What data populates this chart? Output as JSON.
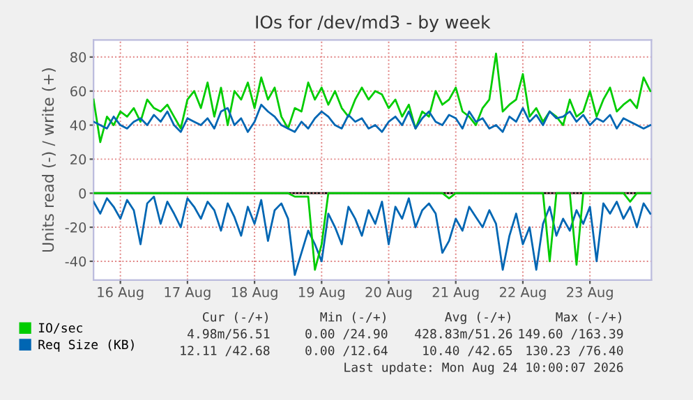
{
  "chart_data": {
    "type": "line",
    "title": "IOs for /dev/md3 - by week",
    "ylabel": "Units read (-) / write (+)",
    "x": [
      "2026-08-16T02:24",
      "2026-08-16T04:48",
      "2026-08-16T07:12",
      "2026-08-16T09:36",
      "2026-08-16T12:00",
      "2026-08-16T14:24",
      "2026-08-16T16:48",
      "2026-08-16T19:12",
      "2026-08-16T21:36",
      "2026-08-17T00:00",
      "2026-08-17T02:24",
      "2026-08-17T04:48",
      "2026-08-17T07:12",
      "2026-08-17T09:36",
      "2026-08-17T12:00",
      "2026-08-17T14:24",
      "2026-08-17T16:48",
      "2026-08-17T19:12",
      "2026-08-17T21:36",
      "2026-08-18T00:00",
      "2026-08-18T02:24",
      "2026-08-18T04:48",
      "2026-08-18T07:12",
      "2026-08-18T09:36",
      "2026-08-18T12:00",
      "2026-08-18T14:24",
      "2026-08-18T16:48",
      "2026-08-18T19:12",
      "2026-08-18T21:36",
      "2026-08-19T00:00",
      "2026-08-19T02:24",
      "2026-08-19T04:48",
      "2026-08-19T07:12",
      "2026-08-19T09:36",
      "2026-08-19T12:00",
      "2026-08-19T14:24",
      "2026-08-19T16:48",
      "2026-08-19T19:12",
      "2026-08-19T21:36",
      "2026-08-20T00:00",
      "2026-08-20T02:24",
      "2026-08-20T04:48",
      "2026-08-20T07:12",
      "2026-08-20T09:36",
      "2026-08-20T12:00",
      "2026-08-20T14:24",
      "2026-08-20T16:48",
      "2026-08-20T19:12",
      "2026-08-20T21:36",
      "2026-08-21T00:00",
      "2026-08-21T02:24",
      "2026-08-21T04:48",
      "2026-08-21T07:12",
      "2026-08-21T09:36",
      "2026-08-21T12:00",
      "2026-08-21T14:24",
      "2026-08-21T16:48",
      "2026-08-21T19:12",
      "2026-08-21T21:36",
      "2026-08-22T00:00",
      "2026-08-22T02:24",
      "2026-08-22T04:48",
      "2026-08-22T07:12",
      "2026-08-22T09:36",
      "2026-08-22T12:00",
      "2026-08-22T14:24",
      "2026-08-22T16:48",
      "2026-08-22T19:12",
      "2026-08-22T21:36",
      "2026-08-23T00:00",
      "2026-08-23T02:24",
      "2026-08-23T04:48",
      "2026-08-23T07:12",
      "2026-08-23T09:36",
      "2026-08-23T12:00",
      "2026-08-23T14:24",
      "2026-08-23T16:48",
      "2026-08-23T19:12",
      "2026-08-23T21:36",
      "2026-08-24T00:00",
      "2026-08-24T02:24",
      "2026-08-24T04:48",
      "2026-08-24T07:12",
      "2026-08-24T09:36"
    ],
    "series": [
      {
        "name": "IO/sec",
        "color": "#00cc00",
        "values": [
          55,
          30,
          45,
          40,
          48,
          45,
          50,
          42,
          55,
          50,
          48,
          52,
          45,
          38,
          55,
          60,
          50,
          65,
          45,
          62,
          40,
          60,
          55,
          65,
          50,
          68,
          55,
          62,
          45,
          38,
          50,
          48,
          65,
          55,
          62,
          52,
          60,
          50,
          45,
          55,
          62,
          55,
          60,
          58,
          50,
          55,
          45,
          52,
          38,
          48,
          45,
          60,
          52,
          55,
          62,
          48,
          45,
          40,
          50,
          55,
          82,
          48,
          52,
          55,
          70,
          45,
          50,
          42,
          48,
          45,
          40,
          55,
          45,
          48,
          60,
          45,
          55,
          62,
          48,
          52,
          55,
          50,
          68,
          60
        ]
      },
      {
        "name": "Req Size (KB)",
        "color": "#0066b3",
        "values": [
          42,
          40,
          38,
          45,
          40,
          38,
          42,
          44,
          40,
          46,
          42,
          48,
          40,
          36,
          44,
          42,
          40,
          44,
          38,
          48,
          50,
          40,
          44,
          36,
          42,
          52,
          48,
          45,
          40,
          38,
          36,
          42,
          38,
          44,
          48,
          45,
          40,
          38,
          46,
          42,
          44,
          38,
          40,
          36,
          42,
          45,
          40,
          48,
          38,
          44,
          48,
          42,
          40,
          46,
          44,
          38,
          48,
          42,
          44,
          38,
          40,
          36,
          45,
          42,
          50,
          42,
          46,
          40,
          48,
          44,
          45,
          48,
          42,
          46,
          40,
          44,
          42,
          46,
          38,
          44,
          42,
          40,
          38,
          40
        ]
      },
      {
        "color": "#0066b3",
        "values": [
          -5,
          -12,
          -3,
          -8,
          -15,
          -4,
          -10,
          -30,
          -6,
          -2,
          -18,
          -5,
          -12,
          -20,
          -3,
          -8,
          -15,
          -5,
          -10,
          -22,
          -6,
          -14,
          -25,
          -8,
          -18,
          -4,
          -28,
          -10,
          -6,
          -15,
          -48,
          -35,
          -22,
          -30,
          -40,
          -12,
          -20,
          -30,
          -8,
          -15,
          -25,
          -10,
          -18,
          -5,
          -30,
          -8,
          -15,
          -3,
          -20,
          -10,
          -6,
          -12,
          -35,
          -28,
          -15,
          -22,
          -8,
          -14,
          -20,
          -10,
          -18,
          -45,
          -25,
          -12,
          -30,
          -20,
          -45,
          -18,
          -8,
          -25,
          -15,
          -22,
          -10,
          -18,
          -8,
          -40,
          -6,
          -12,
          -5,
          -15,
          -8,
          -20,
          -6,
          -12
        ]
      },
      {
        "color": "#00cc00",
        "values": [
          0,
          0,
          0,
          0,
          0,
          0,
          0,
          0,
          0,
          0,
          0,
          0,
          0,
          0,
          0,
          0,
          0,
          0,
          0,
          0,
          0,
          0,
          0,
          0,
          0,
          0,
          0,
          0,
          0,
          0,
          -2,
          -2,
          -2,
          -45,
          -30,
          0,
          0,
          0,
          0,
          0,
          0,
          0,
          0,
          0,
          0,
          0,
          0,
          0,
          0,
          0,
          0,
          0,
          0,
          -3,
          0,
          0,
          0,
          0,
          0,
          0,
          0,
          0,
          0,
          0,
          0,
          0,
          0,
          0,
          -40,
          0,
          0,
          0,
          -42,
          0,
          0,
          0,
          0,
          0,
          0,
          0,
          -5,
          0,
          0,
          0
        ]
      }
    ],
    "xlim": [
      "2026-08-16T02:24",
      "2026-08-24T10:00"
    ],
    "xticks": [
      {
        "value": "2026-08-16T12:00",
        "label": "16 Aug"
      },
      {
        "value": "2026-08-17T12:00",
        "label": "17 Aug"
      },
      {
        "value": "2026-08-18T12:00",
        "label": "18 Aug"
      },
      {
        "value": "2026-08-19T12:00",
        "label": "19 Aug"
      },
      {
        "value": "2026-08-20T12:00",
        "label": "20 Aug"
      },
      {
        "value": "2026-08-21T12:00",
        "label": "21 Aug"
      },
      {
        "value": "2026-08-22T12:00",
        "label": "22 Aug"
      },
      {
        "value": "2026-08-23T12:00",
        "label": "23 Aug"
      }
    ],
    "ylim": [
      -51,
      90
    ],
    "yticks": [
      -40,
      -20,
      0,
      20,
      40,
      60,
      80
    ],
    "ref_lines": [
      {
        "axis": "y",
        "value": 0,
        "color": "#000000"
      }
    ],
    "grid": true,
    "legend": "bottom",
    "line_style": "solid",
    "marker": "none",
    "annotations": [
      "Cur (-/+)",
      "Min (-/+)",
      "Avg (-/+)",
      "Max (-/+)",
      "4.98m/56.51",
      "0.00 /24.90",
      "428.83m/51.26",
      "149.60 /163.39",
      "12.11 /42.68",
      "0.00 /12.64",
      "10.40 /42.65",
      "130.23 /76.40",
      "Last update: Mon Aug 24 10:00:07 2026"
    ]
  }
}
